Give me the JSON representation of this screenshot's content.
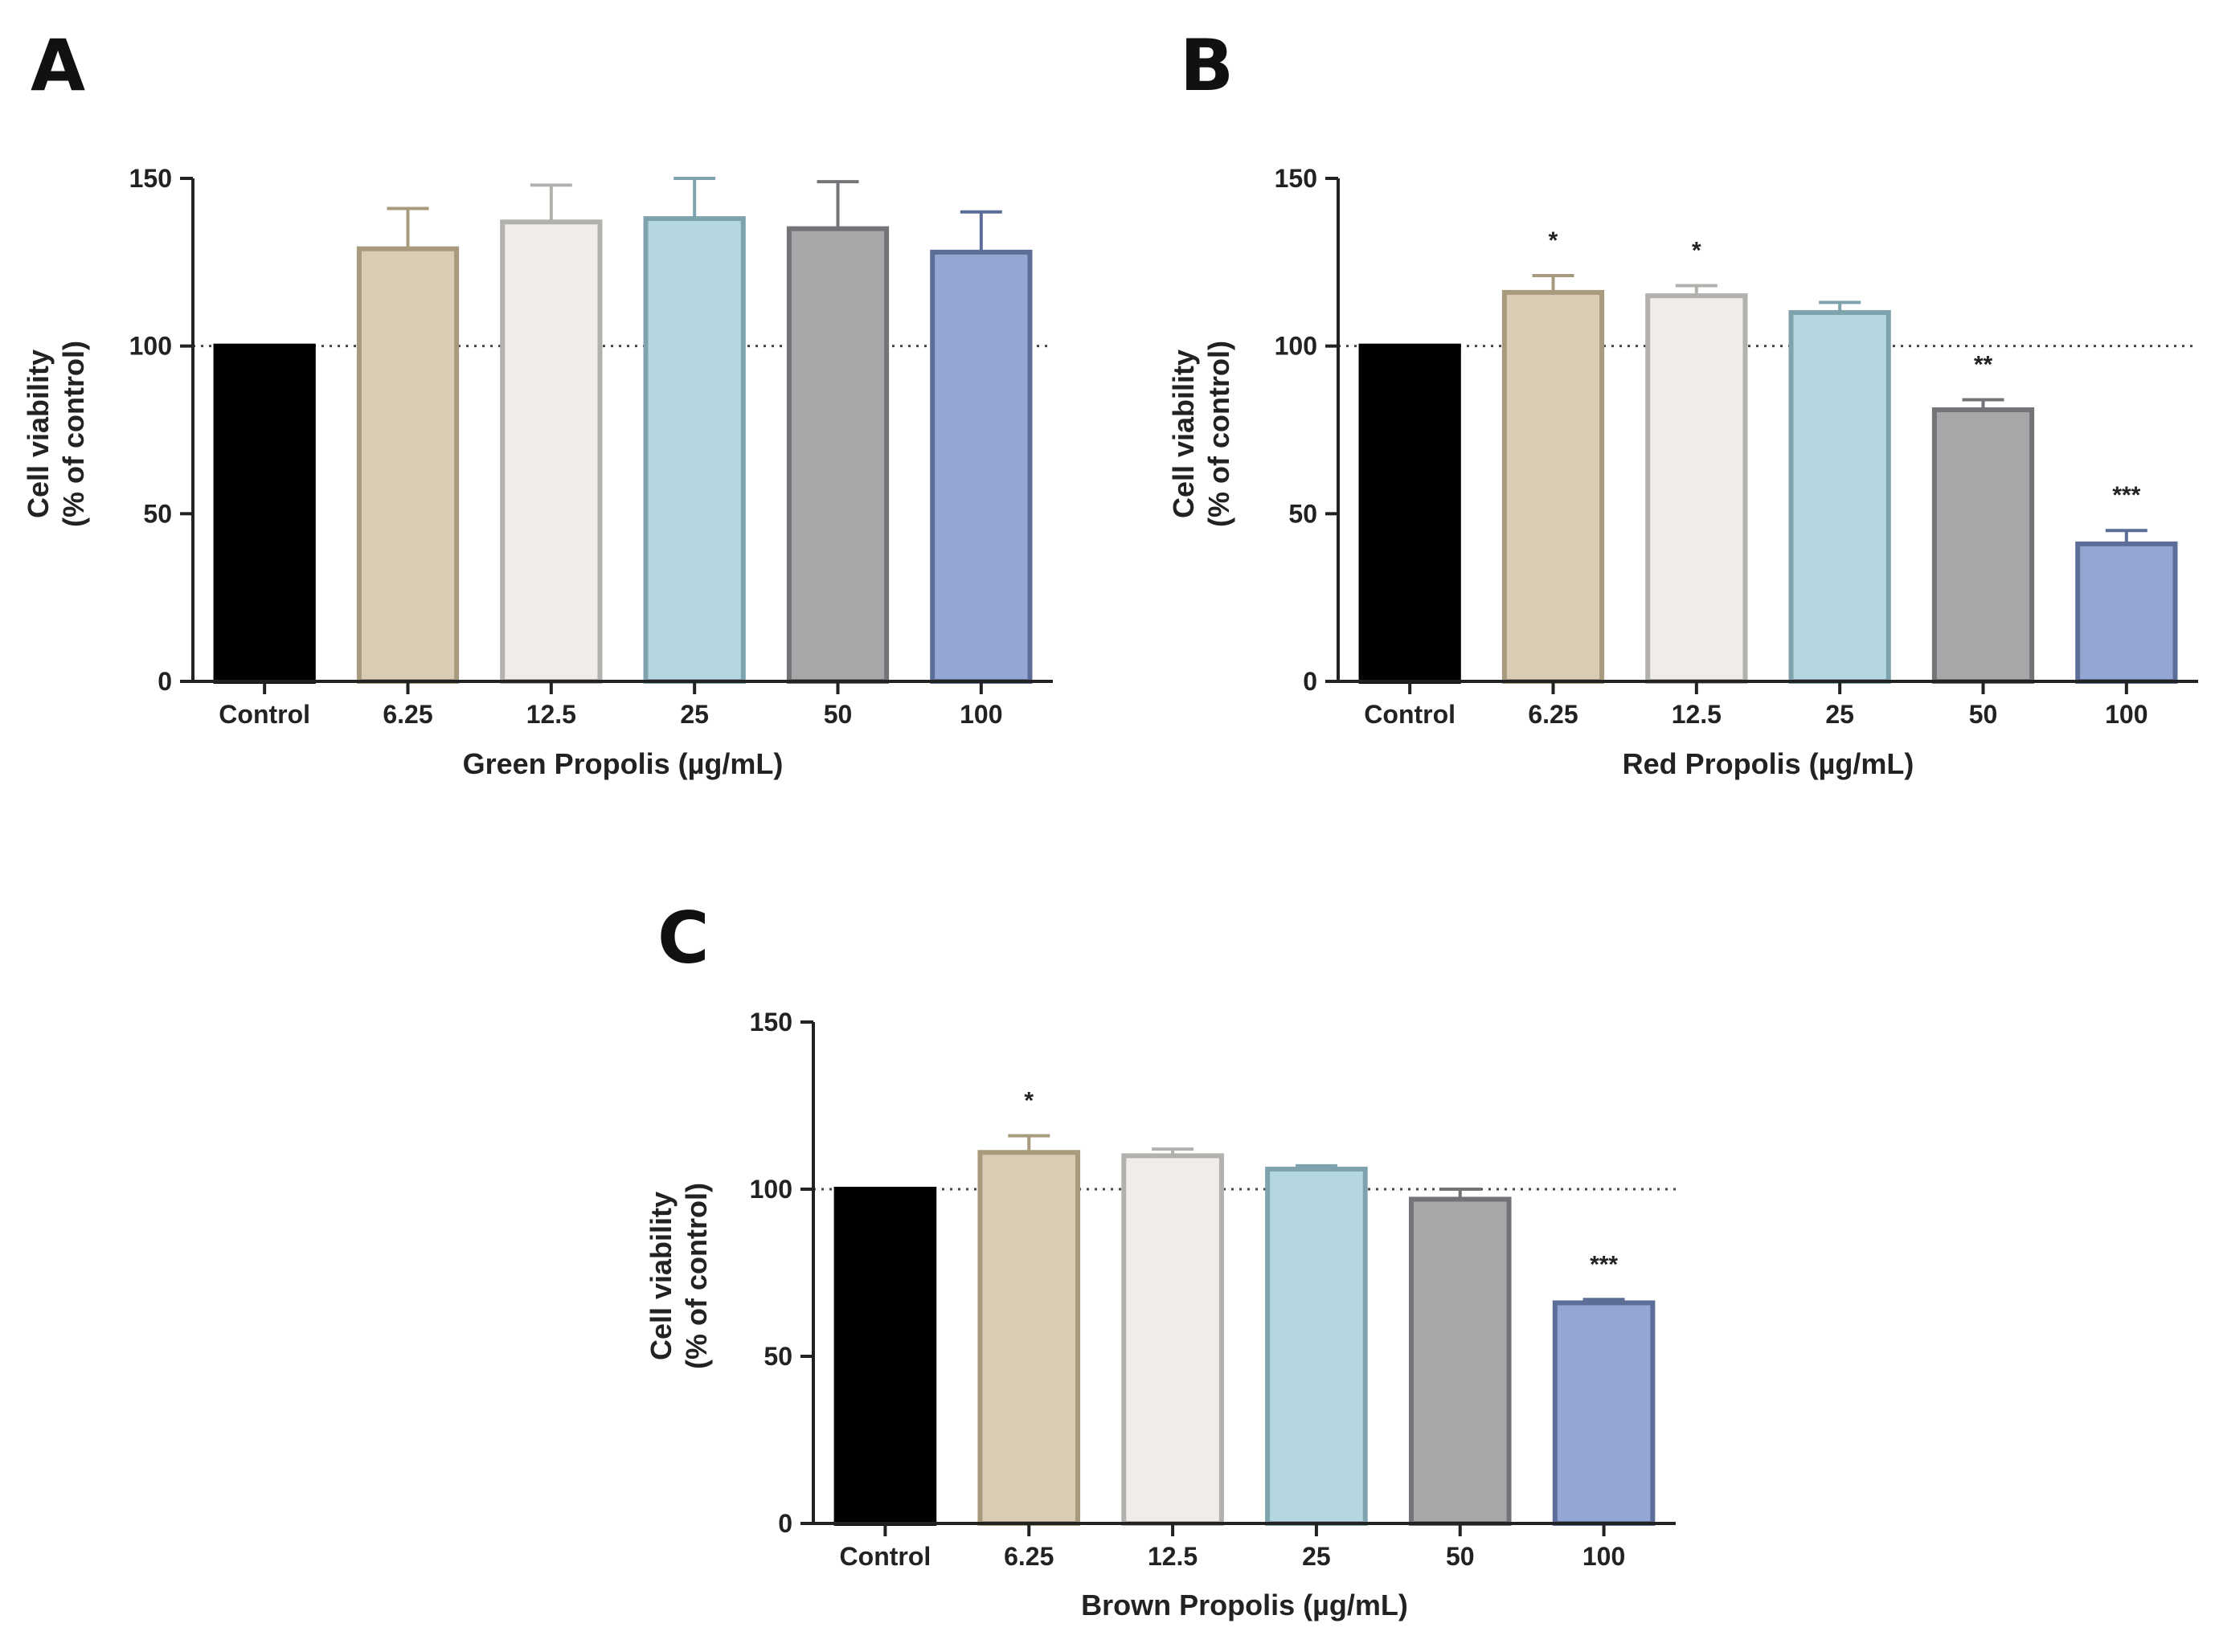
{
  "chart_data": [
    {
      "panel_label": "A",
      "type": "bar",
      "categories": [
        "Control",
        "6.25",
        "12.5",
        "25",
        "50",
        "100"
      ],
      "values": [
        100,
        129,
        137,
        138,
        135,
        128
      ],
      "errors": [
        0,
        12,
        11,
        12,
        14,
        12
      ],
      "significance": [
        "",
        "",
        "",
        "",
        "",
        ""
      ],
      "xlabel": "Green Propolis (µg/mL)",
      "ylabel_line1": "Cell viability",
      "ylabel_line2": "(% of control)",
      "ylim": [
        0,
        150
      ],
      "yticks": [
        0,
        50,
        100,
        150
      ],
      "reference_line": 100,
      "grid": false,
      "colors": {
        "fills": [
          "#000000",
          "#d9ccb4",
          "#f0ede8",
          "#b5d7e0",
          "#a6a7a9",
          "#94a7d2"
        ],
        "strokes": [
          "#000000",
          "#a89a7c",
          "#b3b1ad",
          "#7fa3ad",
          "#737477",
          "#5c6e98"
        ]
      }
    },
    {
      "panel_label": "B",
      "type": "bar",
      "categories": [
        "Control",
        "6.25",
        "12.5",
        "25",
        "50",
        "100"
      ],
      "values": [
        100,
        116,
        115,
        110,
        81,
        41
      ],
      "errors": [
        0,
        5,
        3,
        3,
        3,
        4
      ],
      "significance": [
        "",
        "*",
        "*",
        "",
        "**",
        "***"
      ],
      "xlabel": "Red Propolis (µg/mL)",
      "ylabel_line1": "Cell viability",
      "ylabel_line2": "(% of control)",
      "ylim": [
        0,
        150
      ],
      "yticks": [
        0,
        50,
        100,
        150
      ],
      "reference_line": 100,
      "grid": false,
      "colors": {
        "fills": [
          "#000000",
          "#d9ccb4",
          "#f0ede8",
          "#b5d7e0",
          "#a6a7a9",
          "#94a7d2"
        ],
        "strokes": [
          "#000000",
          "#a89a7c",
          "#b3b1ad",
          "#7fa3ad",
          "#737477",
          "#5c6e98"
        ]
      }
    },
    {
      "panel_label": "C",
      "type": "bar",
      "categories": [
        "Control",
        "6.25",
        "12.5",
        "25",
        "50",
        "100"
      ],
      "values": [
        100,
        111,
        110,
        106,
        97,
        66
      ],
      "errors": [
        0,
        5,
        2,
        1,
        3,
        1
      ],
      "significance": [
        "",
        "*",
        "",
        "",
        "",
        "***"
      ],
      "xlabel": "Brown Propolis (µg/mL)",
      "ylabel_line1": "Cell viability",
      "ylabel_line2": "(% of control)",
      "ylim": [
        0,
        150
      ],
      "yticks": [
        0,
        50,
        100,
        150
      ],
      "reference_line": 100,
      "grid": false,
      "colors": {
        "fills": [
          "#000000",
          "#d9ccb4",
          "#f0ede8",
          "#b5d7e0",
          "#a6a7a9",
          "#94a7d2"
        ],
        "strokes": [
          "#000000",
          "#a89a7c",
          "#b3b1ad",
          "#7fa3ad",
          "#737477",
          "#5c6e98"
        ]
      }
    }
  ]
}
